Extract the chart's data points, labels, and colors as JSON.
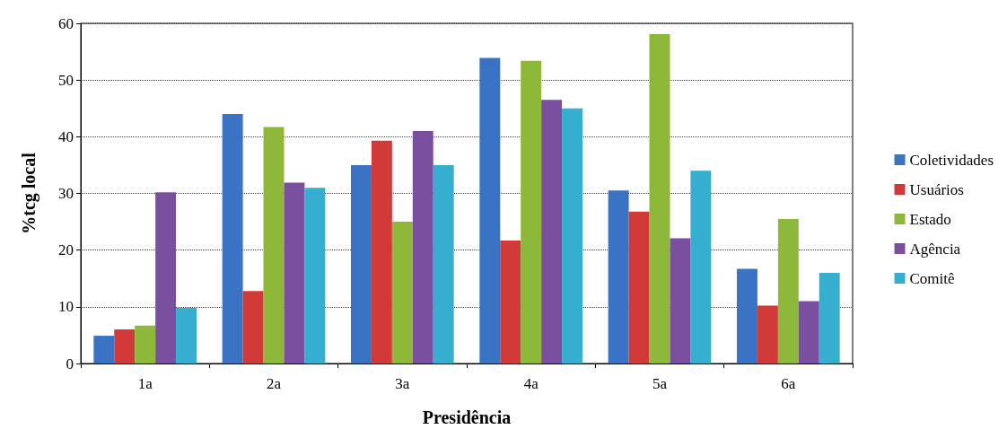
{
  "chart_data": {
    "type": "bar",
    "xlabel": "Presidência",
    "ylabel": "%tcg local",
    "categories": [
      "1a",
      "2a",
      "3a",
      "4a",
      "5a",
      "6a"
    ],
    "series": [
      {
        "name": "Coletividades",
        "color": "#3a72c4",
        "values": [
          4.9,
          44,
          35,
          53.9,
          30.5,
          16.7
        ]
      },
      {
        "name": "Usuários",
        "color": "#d03a38",
        "values": [
          6,
          12.8,
          39.3,
          21.7,
          26.8,
          10.2
        ]
      },
      {
        "name": "Estado",
        "color": "#8db83a",
        "values": [
          6.7,
          41.7,
          25,
          53.4,
          58.1,
          25.5
        ]
      },
      {
        "name": "Agência",
        "color": "#7a4fa0",
        "values": [
          30.2,
          31.9,
          41,
          46.5,
          22.1,
          11
        ]
      },
      {
        "name": "Comitê",
        "color": "#35aed0",
        "values": [
          9.8,
          31,
          35,
          45,
          34,
          16
        ]
      }
    ],
    "ylim": [
      0,
      60
    ],
    "yticks": [
      0,
      10,
      20,
      30,
      40,
      50,
      60
    ],
    "grid": "y",
    "legend": "right"
  }
}
